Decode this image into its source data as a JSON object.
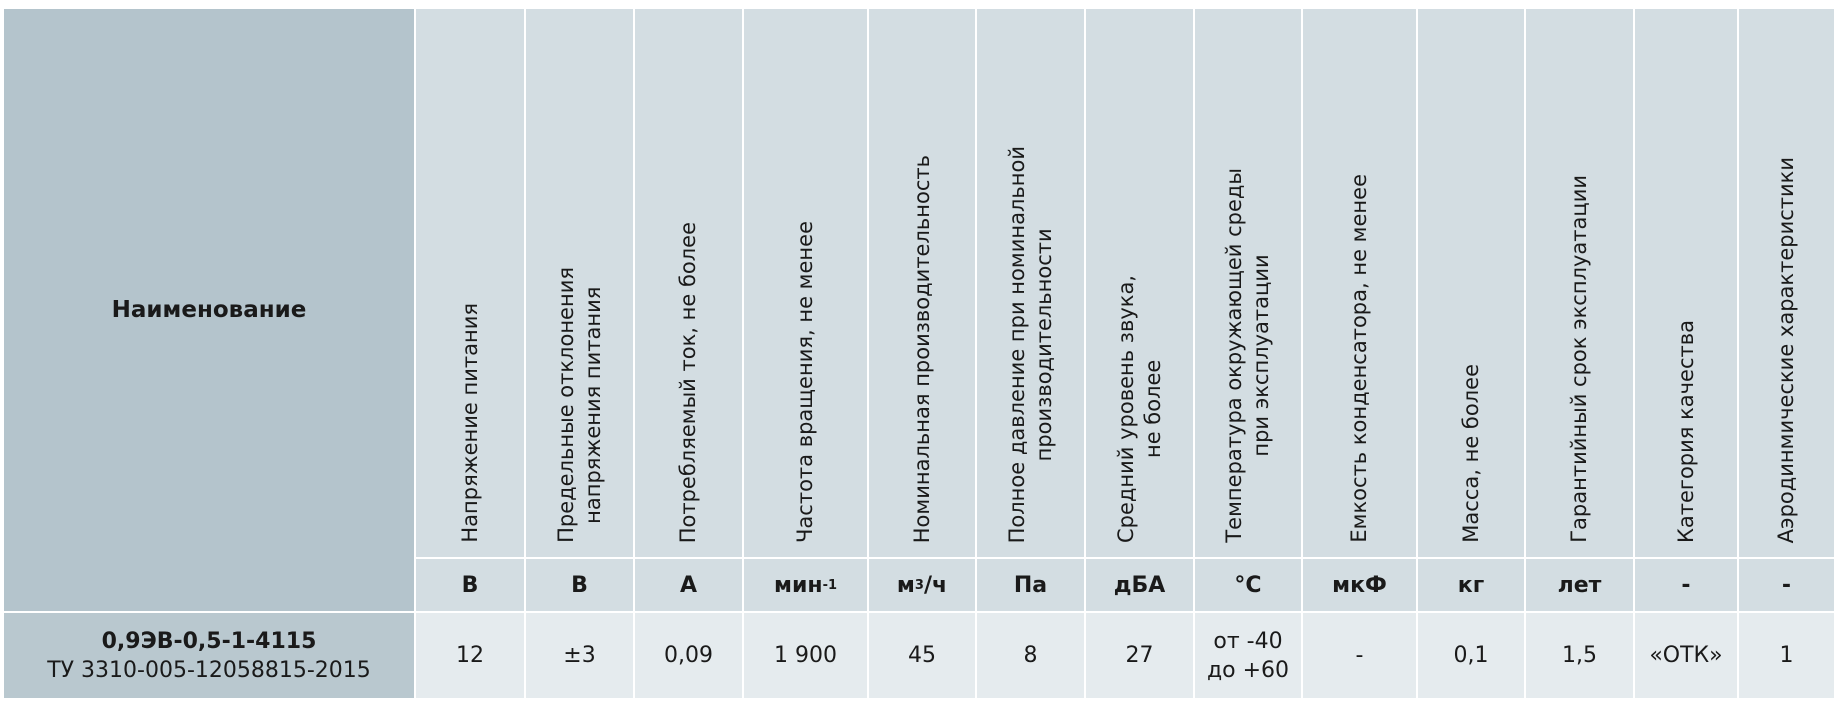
{
  "header": {
    "name": "Наименование"
  },
  "columns": [
    {
      "label": [
        "Напряжение  питания"
      ],
      "unit": "В"
    },
    {
      "label": [
        "Предельные отклонения",
        "напряжения питания"
      ],
      "unit": "В"
    },
    {
      "label": [
        "Потребляемый ток, не более"
      ],
      "unit": "А"
    },
    {
      "label": [
        "Частота вращения, не менее"
      ],
      "unit": "мин",
      "unit_sup": "-1"
    },
    {
      "label": [
        "Номинальная производительность"
      ],
      "unit": "м",
      "unit_sup": "3",
      "unit_tail": "/ч"
    },
    {
      "label": [
        "Полное давление при номинальной",
        "производительности"
      ],
      "unit": "Па"
    },
    {
      "label": [
        "Средний уровень звука,",
        "не более"
      ],
      "unit": "дБА"
    },
    {
      "label": [
        "Температура окружающей среды",
        "при эксплуатации"
      ],
      "unit": "°С"
    },
    {
      "label": [
        "Емкость конденсатора, не менее"
      ],
      "unit": "мкФ"
    },
    {
      "label": [
        "Масса, не более"
      ],
      "unit": "кг"
    },
    {
      "label": [
        "Гарантийный срок эксплуатации"
      ],
      "unit": "лет"
    },
    {
      "label": [
        "Категория качества"
      ],
      "unit": "-"
    },
    {
      "label": [
        "Аэродинмические характеристики"
      ],
      "unit": "-"
    }
  ],
  "row": {
    "name": [
      "0,9ЭВ-0,5-1-4115",
      "ТУ 3310-005-12058815-2015"
    ],
    "values": [
      [
        "12"
      ],
      [
        "±3"
      ],
      [
        "0,09"
      ],
      [
        "1 900"
      ],
      [
        "45"
      ],
      [
        "8"
      ],
      [
        "27"
      ],
      [
        "от -40",
        "до +60"
      ],
      [
        "-"
      ],
      [
        "0,1"
      ],
      [
        "1,5"
      ],
      [
        "«ОТК»"
      ],
      [
        "1"
      ]
    ]
  }
}
